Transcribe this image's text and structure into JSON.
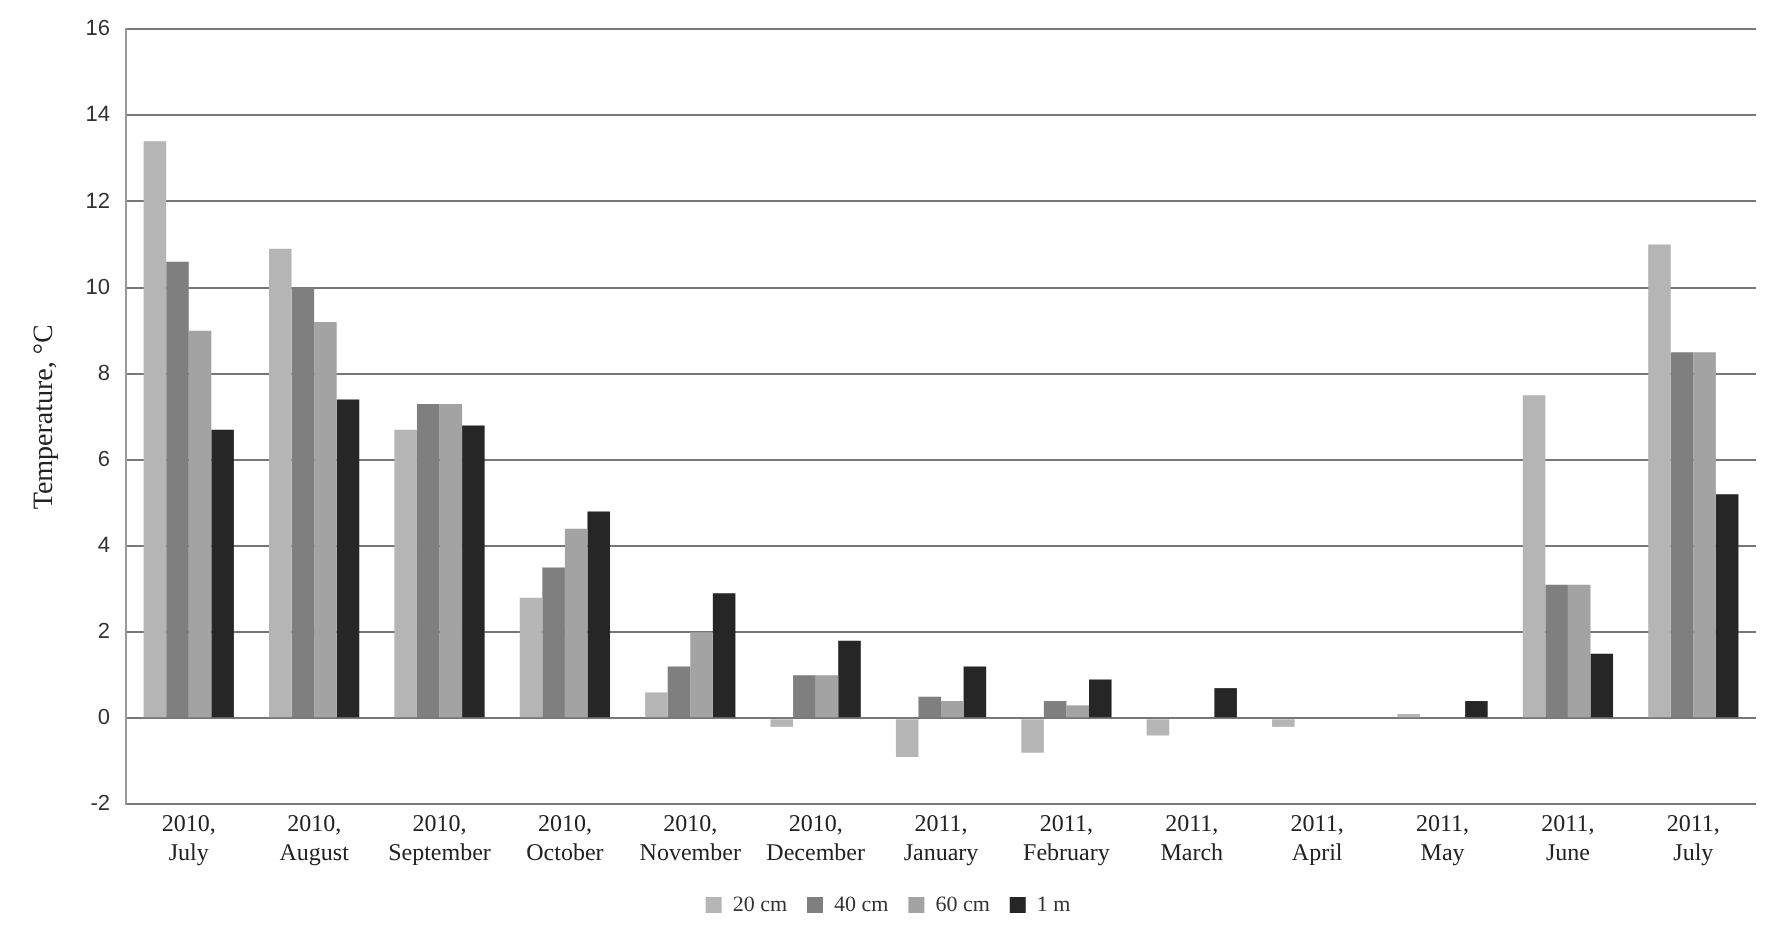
{
  "chart_data": {
    "type": "bar",
    "ylabel": "Temperature, °C",
    "categories": [
      "2010, July",
      "2010, August",
      "2010, September",
      "2010, October",
      "2010, November",
      "2010, December",
      "2011, January",
      "2011, February",
      "2011, March",
      "2011, April",
      "2011, May",
      "2011, June",
      "2011, July"
    ],
    "series": [
      {
        "name": "20 cm",
        "color": "#b5b5b5",
        "values": [
          13.4,
          10.9,
          6.7,
          2.8,
          0.6,
          -0.2,
          -0.9,
          -0.8,
          -0.4,
          -0.2,
          0.1,
          7.5,
          11.0
        ]
      },
      {
        "name": "40 cm",
        "color": "#7f7f7f",
        "values": [
          10.6,
          10.0,
          7.3,
          3.5,
          1.2,
          1.0,
          0.5,
          0.4,
          0,
          0,
          0,
          3.1,
          8.5
        ]
      },
      {
        "name": "60 cm",
        "color": "#a3a3a3",
        "values": [
          9.0,
          9.2,
          7.3,
          4.4,
          2.0,
          1.0,
          0.4,
          0.3,
          0,
          0,
          0,
          3.1,
          8.5
        ]
      },
      {
        "name": "1 m",
        "color": "#262626",
        "values": [
          6.7,
          7.4,
          6.8,
          4.8,
          2.9,
          1.8,
          1.2,
          0.9,
          0.7,
          0,
          0.4,
          1.5,
          5.2
        ]
      }
    ],
    "ylim": [
      -2,
      16
    ],
    "yticks": [
      -2,
      0,
      2,
      4,
      6,
      8,
      10,
      12,
      14,
      16
    ],
    "grid": "y",
    "legend": "bottom"
  }
}
